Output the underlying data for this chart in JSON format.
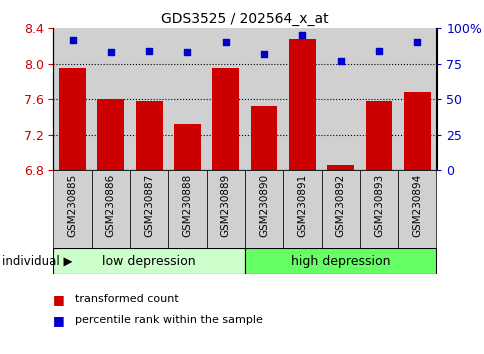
{
  "title": "GDS3525 / 202564_x_at",
  "samples": [
    "GSM230885",
    "GSM230886",
    "GSM230887",
    "GSM230888",
    "GSM230889",
    "GSM230890",
    "GSM230891",
    "GSM230892",
    "GSM230893",
    "GSM230894"
  ],
  "bar_values": [
    7.95,
    7.6,
    7.58,
    7.32,
    7.95,
    7.52,
    8.28,
    6.85,
    7.58,
    7.68
  ],
  "dot_values": [
    92,
    83,
    84,
    83,
    90,
    82,
    95,
    77,
    84,
    90
  ],
  "ylim_left": [
    6.8,
    8.4
  ],
  "ylim_right": [
    0,
    100
  ],
  "yticks_left": [
    6.8,
    7.2,
    7.6,
    8.0,
    8.4
  ],
  "yticks_right": [
    0,
    25,
    50,
    75,
    100
  ],
  "bar_color": "#cc0000",
  "dot_color": "#0000cc",
  "group1_label": "low depression",
  "group2_label": "high depression",
  "group1_indices": [
    0,
    1,
    2,
    3,
    4
  ],
  "group2_indices": [
    5,
    6,
    7,
    8,
    9
  ],
  "group1_color": "#ccffcc",
  "group2_color": "#66ff66",
  "legend_bar_label": "transformed count",
  "legend_dot_label": "percentile rank within the sample",
  "individual_label": "individual",
  "tick_area_color": "#d0d0d0",
  "hgrid_color": "#000000",
  "bg_color": "#ffffff"
}
